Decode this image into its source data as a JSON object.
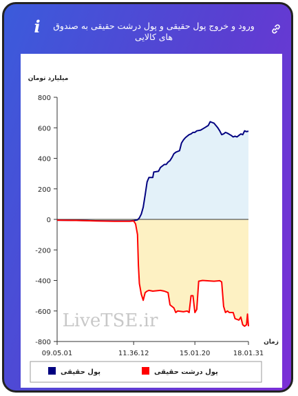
{
  "header": {
    "title": "ورود و خروج پول حقیقی و پول درشت حقیقی به صندوق های کالایی",
    "info_icon": "info-icon",
    "link_icon": "link-icon"
  },
  "watermark": "LiveTSE.ir",
  "colors": {
    "real_money": "#000080",
    "large_real_money": "#ff0000",
    "positive_fill": "#e3f1f9",
    "negative_fill": "#fdf1c3"
  },
  "chart_data": {
    "type": "line",
    "ylabel": "میلیارد تومان",
    "xlabel": "زمان",
    "ylim": [
      -800,
      800
    ],
    "yticks": [
      800,
      600,
      400,
      200,
      0,
      -200,
      -400,
      -600,
      -800
    ],
    "xticks": [
      "09.05.01",
      "11.36.12",
      "15.01.20",
      "18.01.31"
    ],
    "x_range": [
      0,
      100
    ],
    "xtick_positions": [
      0,
      40,
      72,
      100
    ],
    "grid": false,
    "legend_position": "bottom",
    "series": [
      {
        "name": "پول حقیقی",
        "color": "#000080",
        "points": [
          [
            0,
            -5
          ],
          [
            10,
            -7
          ],
          [
            20,
            -9
          ],
          [
            30,
            -10
          ],
          [
            38,
            -10
          ],
          [
            40,
            -8
          ],
          [
            42,
            -3
          ],
          [
            43,
            10
          ],
          [
            44,
            35
          ],
          [
            45,
            80
          ],
          [
            46,
            160
          ],
          [
            47,
            245
          ],
          [
            48,
            275
          ],
          [
            50,
            275
          ],
          [
            50.5,
            310
          ],
          [
            53,
            315
          ],
          [
            54,
            340
          ],
          [
            55,
            350
          ],
          [
            56,
            360
          ],
          [
            57,
            360
          ],
          [
            58,
            375
          ],
          [
            59,
            385
          ],
          [
            60,
            405
          ],
          [
            61,
            430
          ],
          [
            62,
            440
          ],
          [
            63,
            445
          ],
          [
            64,
            450
          ],
          [
            65,
            500
          ],
          [
            66,
            520
          ],
          [
            67,
            535
          ],
          [
            68,
            545
          ],
          [
            69,
            555
          ],
          [
            70,
            560
          ],
          [
            71,
            570
          ],
          [
            72,
            570
          ],
          [
            73,
            580
          ],
          [
            75,
            585
          ],
          [
            77,
            600
          ],
          [
            79,
            615
          ],
          [
            80,
            640
          ],
          [
            81,
            635
          ],
          [
            82,
            630
          ],
          [
            83,
            615
          ],
          [
            84,
            600
          ],
          [
            85,
            580
          ],
          [
            86,
            555
          ],
          [
            87,
            560
          ],
          [
            88,
            570
          ],
          [
            89,
            565
          ],
          [
            91,
            550
          ],
          [
            92,
            540
          ],
          [
            93,
            545
          ],
          [
            94,
            540
          ],
          [
            95,
            550
          ],
          [
            96,
            560
          ],
          [
            97,
            555
          ],
          [
            98,
            580
          ],
          [
            99,
            575
          ],
          [
            100,
            578
          ]
        ]
      },
      {
        "name": "پول درشت حقیقی",
        "color": "#ff0000",
        "points": [
          [
            0,
            -5
          ],
          [
            10,
            -7
          ],
          [
            20,
            -10
          ],
          [
            30,
            -12
          ],
          [
            38,
            -12
          ],
          [
            40,
            -10
          ],
          [
            41,
            -30
          ],
          [
            42,
            -100
          ],
          [
            42.5,
            -300
          ],
          [
            43,
            -420
          ],
          [
            44,
            -490
          ],
          [
            45,
            -530
          ],
          [
            46,
            -480
          ],
          [
            47,
            -470
          ],
          [
            48,
            -465
          ],
          [
            50,
            -470
          ],
          [
            54,
            -465
          ],
          [
            56,
            -470
          ],
          [
            57,
            -475
          ],
          [
            58,
            -480
          ],
          [
            59,
            -560
          ],
          [
            60,
            -570
          ],
          [
            61,
            -580
          ],
          [
            62,
            -610
          ],
          [
            63,
            -600
          ],
          [
            66,
            -605
          ],
          [
            68,
            -600
          ],
          [
            69,
            -610
          ],
          [
            70,
            -500
          ],
          [
            71,
            -500
          ],
          [
            72,
            -610
          ],
          [
            73,
            -590
          ],
          [
            74,
            -405
          ],
          [
            76,
            -400
          ],
          [
            82,
            -405
          ],
          [
            85,
            -402
          ],
          [
            86,
            -410
          ],
          [
            87,
            -570
          ],
          [
            88,
            -610
          ],
          [
            89,
            -600
          ],
          [
            90,
            -610
          ],
          [
            92,
            -610
          ],
          [
            93,
            -650
          ],
          [
            95,
            -660
          ],
          [
            96,
            -640
          ],
          [
            97,
            -690
          ],
          [
            98,
            -700
          ],
          [
            99,
            -690
          ],
          [
            99.5,
            -620
          ],
          [
            100,
            -700
          ]
        ]
      }
    ]
  }
}
